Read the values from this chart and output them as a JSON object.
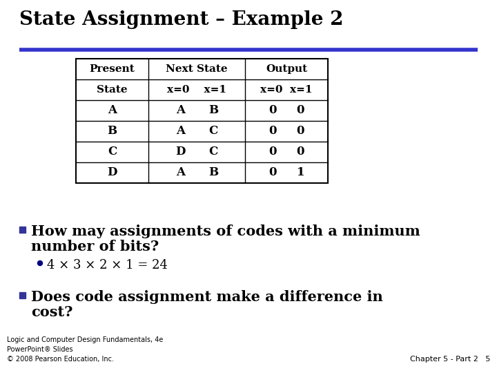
{
  "title": "State Assignment – Example 2",
  "blue_line_color": "#3333cc",
  "background_color": "#ffffff",
  "table_header1": [
    "Present",
    "Next State",
    "Output"
  ],
  "table_header2": [
    "State",
    "x=0    x=1",
    "x=0  x=1"
  ],
  "table_col1": [
    "A",
    "B",
    "C",
    "D"
  ],
  "table_col2_x0": [
    "A",
    "A",
    "D",
    "A"
  ],
  "table_col2_x1": [
    "B",
    "C",
    "C",
    "B"
  ],
  "table_col3_x0": [
    "0",
    "0",
    "0",
    "0"
  ],
  "table_col3_x1": [
    "0",
    "0",
    "0",
    "1"
  ],
  "bullet1_line1": "How may assignments of codes with a minimum",
  "bullet1_line2": "number of bits?",
  "bullet_color": "#333399",
  "subbullet": "4 × 3 × 2 × 1 = 24",
  "subbullet_color": "#000080",
  "bullet2_line1": "Does code assignment make a difference in",
  "bullet2_line2": "cost?",
  "footer_left": "Logic and Computer Design Fundamentals, 4e\nPowerPoint® Slides\n© 2008 Pearson Education, Inc.",
  "footer_right": "Chapter 5 - Part 2   5",
  "title_fontsize": 20,
  "bullet_fontsize": 15,
  "subbullet_fontsize": 13,
  "table_header_fontsize": 11,
  "table_data_fontsize": 12,
  "footer_fontsize": 7
}
